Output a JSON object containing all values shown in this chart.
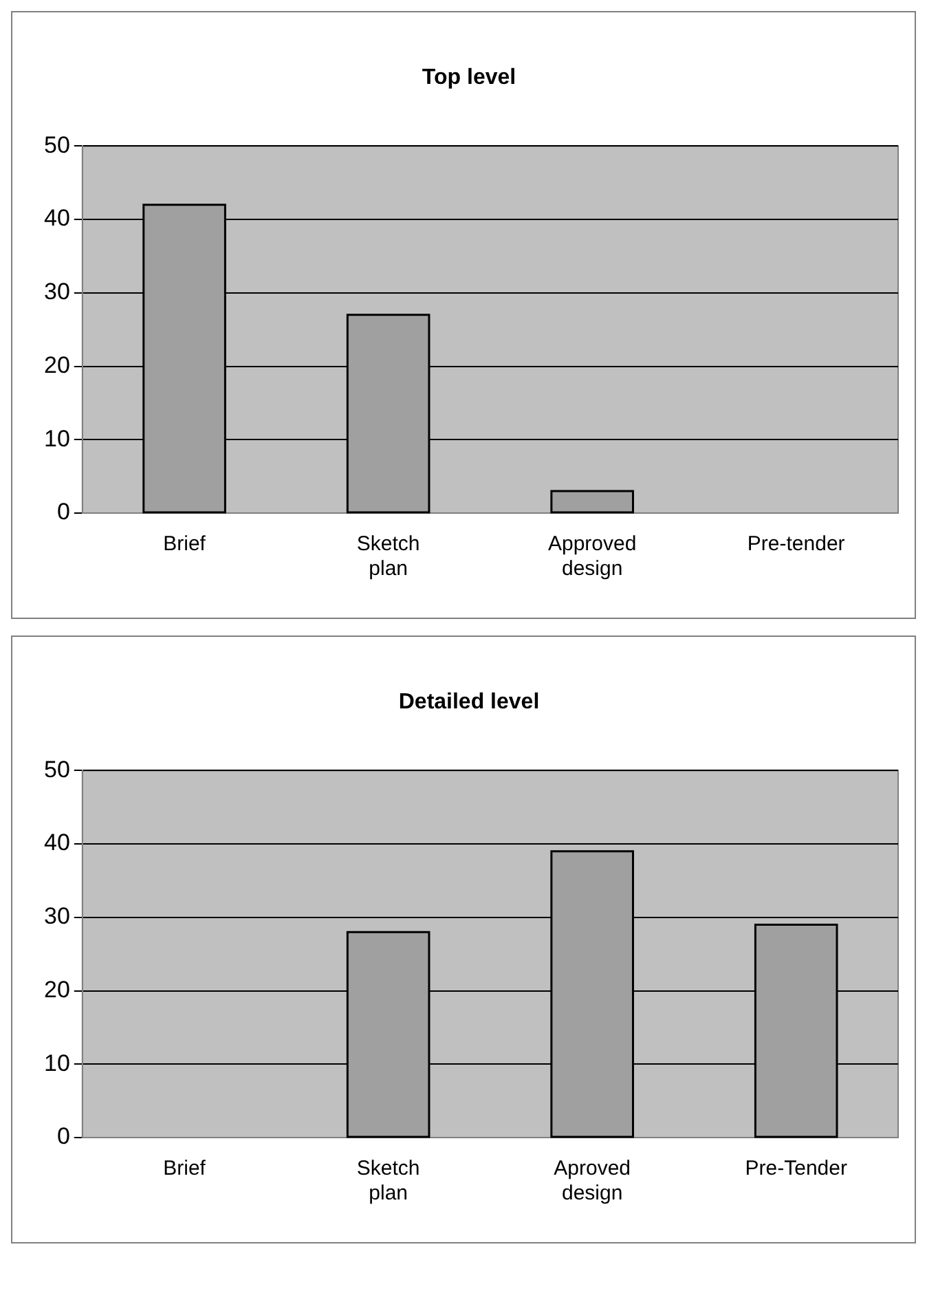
{
  "chart_data": [
    {
      "type": "bar",
      "title": "Top level",
      "categories": [
        "Brief",
        "Sketch plan",
        "Approved design",
        "Pre-tender"
      ],
      "values": [
        42,
        27,
        3,
        0
      ],
      "color": "#a0a0a0",
      "ylim": [
        0,
        50
      ],
      "yticks": [
        0,
        10,
        20,
        30,
        40,
        50
      ],
      "grid": "y",
      "legend": false
    },
    {
      "type": "bar",
      "title": "Detailed level",
      "categories": [
        "Brief",
        "Sketch plan",
        "Aproved design",
        "Pre-Tender"
      ],
      "values": [
        0,
        28,
        39,
        29
      ],
      "color": "#a0a0a0",
      "ylim": [
        0,
        50
      ],
      "yticks": [
        0,
        10,
        20,
        30,
        40,
        50
      ],
      "grid": "y",
      "legend": false
    }
  ]
}
